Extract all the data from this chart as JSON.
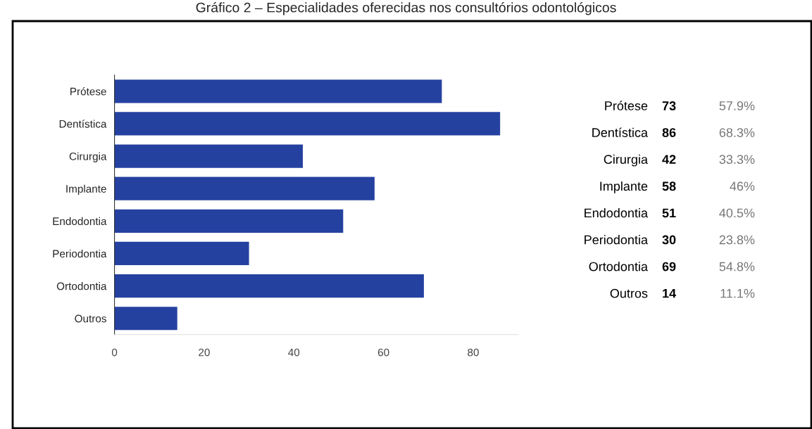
{
  "chart_data": [
    {
      "type": "bar",
      "orientation": "horizontal",
      "title": "Gráfico 2 – Especialidades oferecidas nos consultórios odontológicos",
      "categories": [
        "Prótese",
        "Dentística",
        "Cirurgia",
        "Implante",
        "Endodontia",
        "Periodontia",
        "Ortodontia",
        "Outros"
      ],
      "values": [
        73,
        86,
        42,
        58,
        51,
        30,
        69,
        14
      ],
      "color": "#2541a0",
      "xlim": [
        0,
        90
      ],
      "xticks": [
        0,
        20,
        40,
        60,
        80
      ],
      "grid": false
    },
    {
      "type": "other",
      "annotations": [
        "Prótese",
        "73",
        "57.9%",
        "Dentística",
        "86",
        "68.3%",
        "Cirurgia",
        "42",
        "33.3%",
        "Implante",
        "58",
        "46%",
        "Endodontia",
        "51",
        "40.5%",
        "Periodontia",
        "30",
        "23.8%",
        "Ortodontia",
        "69",
        "54.8%",
        "Outros",
        "14",
        "11.1%"
      ]
    }
  ]
}
